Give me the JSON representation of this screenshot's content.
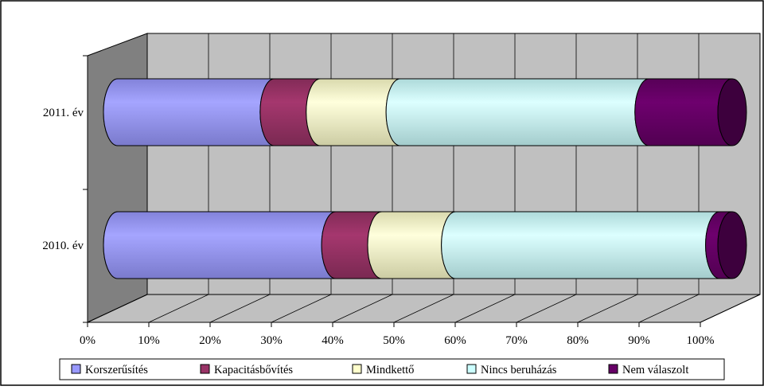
{
  "chart_data": {
    "type": "bar",
    "orientation": "horizontal",
    "stacked": "percent",
    "style": "3d-cylinder",
    "title": "",
    "xlabel": "",
    "ylabel": "",
    "xlim": [
      0,
      100
    ],
    "x_ticks": [
      "0%",
      "10%",
      "20%",
      "30%",
      "40%",
      "50%",
      "60%",
      "70%",
      "80%",
      "90%",
      "100%"
    ],
    "grid": true,
    "legend_position": "bottom",
    "categories": [
      "2011. év",
      "2010. év"
    ],
    "series": [
      {
        "name": "Korszerűsítés",
        "color": "#9999ff",
        "values": [
          25.5,
          35.5
        ]
      },
      {
        "name": "Kapacitásbővítés",
        "color": "#993366",
        "values": [
          7.5,
          7.5
        ]
      },
      {
        "name": "Mindkettő",
        "color": "#ffffcc",
        "values": [
          13,
          12
        ]
      },
      {
        "name": "Nincs beruházás",
        "color": "#ccffff",
        "values": [
          40.5,
          43
        ]
      },
      {
        "name": "Nem válaszolt",
        "color": "#660066",
        "values": [
          13.5,
          2
        ]
      }
    ],
    "colors": {
      "wall": "#c0c0c0",
      "side_wall": "#808080",
      "floor": "#c0c0c0"
    }
  }
}
